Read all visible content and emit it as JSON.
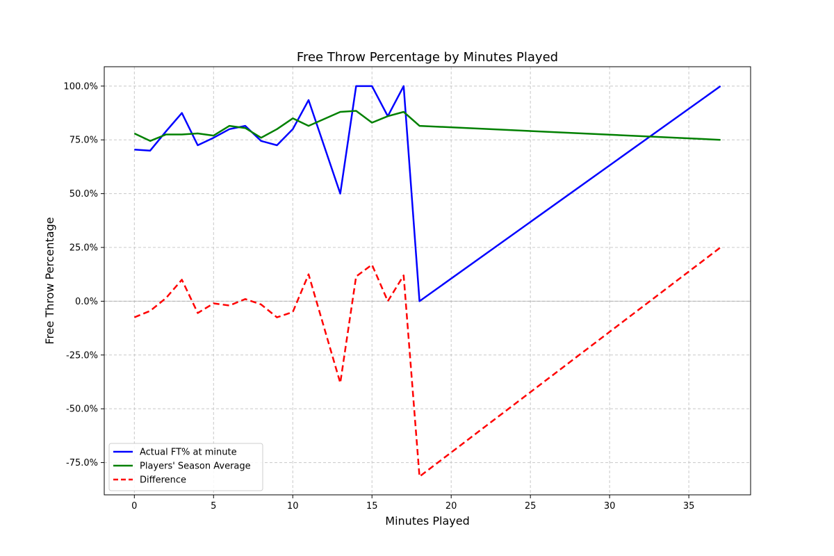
{
  "chart_data": {
    "type": "line",
    "title": "Free Throw Percentage by Minutes Played",
    "xlabel": "Minutes Played",
    "ylabel": "Free Throw Percentage",
    "xlim": [
      -1.9,
      38.9
    ],
    "ylim": [
      -90,
      109
    ],
    "xticks": [
      0,
      5,
      10,
      15,
      20,
      25,
      30,
      35
    ],
    "yticks": [
      -75,
      -50,
      -25,
      0,
      25,
      50,
      75,
      100
    ],
    "ytick_labels": [
      "-75.0%",
      "-50.0%",
      "-25.0%",
      "0.0%",
      "25.0%",
      "50.0%",
      "75.0%",
      "100.0%"
    ],
    "grid": true,
    "legend_position": "lower-left",
    "series": [
      {
        "name": "Actual FT% at minute",
        "color": "#0000ff",
        "style": "solid",
        "x": [
          0,
          1,
          2,
          3,
          4,
          5,
          6,
          7,
          8,
          9,
          10,
          11,
          13,
          14,
          15,
          16,
          17,
          18,
          37
        ],
        "y": [
          70.5,
          70,
          79,
          87.5,
          72.5,
          76,
          80,
          81.5,
          74.5,
          72.5,
          80,
          93.5,
          50,
          100,
          100,
          86,
          100,
          0,
          100
        ]
      },
      {
        "name": "Players' Season Average",
        "color": "#008000",
        "style": "solid",
        "x": [
          0,
          1,
          2,
          3,
          4,
          5,
          6,
          7,
          8,
          9,
          10,
          11,
          13,
          14,
          15,
          16,
          17,
          18,
          37
        ],
        "y": [
          78,
          74.5,
          77.5,
          77.5,
          78,
          77,
          81.5,
          80.5,
          76,
          80,
          85,
          81.5,
          88,
          88.5,
          83,
          86,
          88,
          81.5,
          75
        ]
      },
      {
        "name": "Difference",
        "color": "#ff0000",
        "style": "dashed",
        "x": [
          0,
          1,
          2,
          3,
          4,
          5,
          6,
          7,
          8,
          9,
          10,
          11,
          13,
          14,
          15,
          16,
          17,
          18,
          37
        ],
        "y": [
          -7.5,
          -4.5,
          1.5,
          10,
          -5.5,
          -1,
          -2,
          1,
          -1.5,
          -7.5,
          -5,
          12.5,
          -38,
          11.5,
          17,
          0,
          12,
          -81.5,
          25
        ]
      }
    ]
  }
}
